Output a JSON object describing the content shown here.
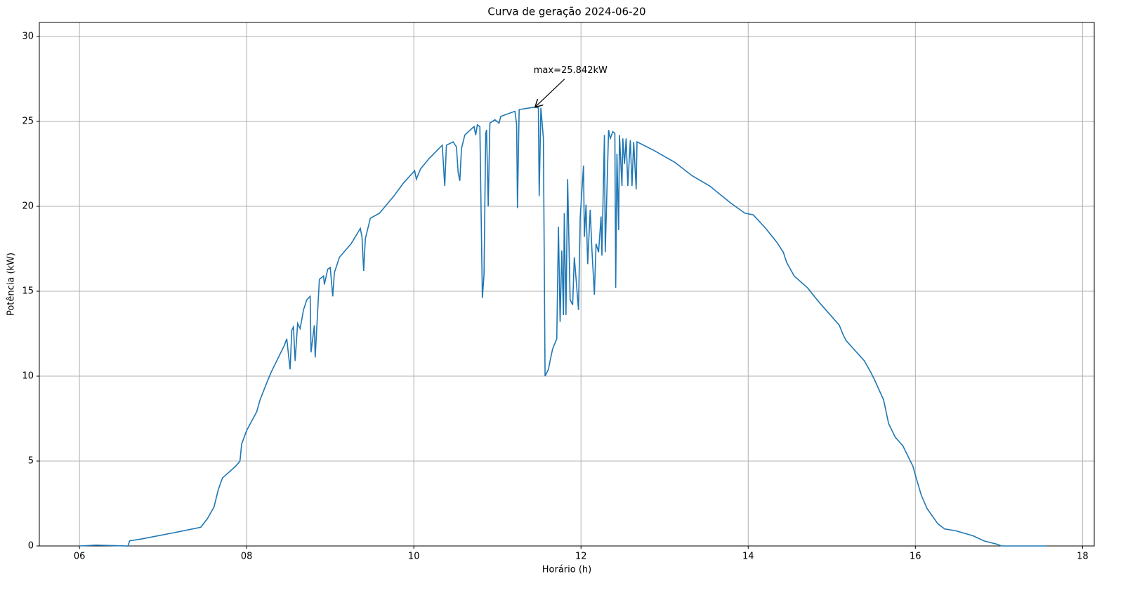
{
  "chart_data": {
    "type": "line",
    "title": "Curva de geração 2024-06-20",
    "xlabel": "Horário (h)",
    "ylabel": "Potência (kW)",
    "xlim": [
      5.52,
      18.14
    ],
    "ylim": [
      0,
      30.83
    ],
    "xticks": [
      {
        "value": 6,
        "label": "06"
      },
      {
        "value": 8,
        "label": "08"
      },
      10,
      12,
      14,
      16,
      18
    ],
    "yticks": [
      0,
      5,
      10,
      15,
      20,
      25,
      30
    ],
    "grid": true,
    "annotation": {
      "text": "max=25.842kW",
      "xy": [
        11.45,
        25.842
      ]
    },
    "series": [
      {
        "color": "#1f77b4",
        "x": [
          6.0,
          6.2,
          6.58,
          6.6,
          6.73,
          7.15,
          7.45,
          7.53,
          7.61,
          7.66,
          7.71,
          7.87,
          7.92,
          7.94,
          8.0,
          8.12,
          8.16,
          8.24,
          8.29,
          8.45,
          8.48,
          8.52,
          8.54,
          8.56,
          8.58,
          8.61,
          8.64,
          8.68,
          8.72,
          8.76,
          8.77,
          8.81,
          8.82,
          8.87,
          8.92,
          8.93,
          8.97,
          9.0,
          9.03,
          9.05,
          9.11,
          9.25,
          9.36,
          9.38,
          9.4,
          9.42,
          9.48,
          9.59,
          9.76,
          9.88,
          10.01,
          10.03,
          10.08,
          10.18,
          10.34,
          10.37,
          10.39,
          10.47,
          10.51,
          10.53,
          10.55,
          10.57,
          10.61,
          10.72,
          10.74,
          10.76,
          10.79,
          10.82,
          10.84,
          10.86,
          10.87,
          10.89,
          10.91,
          10.97,
          11.02,
          11.04,
          11.21,
          11.23,
          11.24,
          11.26,
          11.39,
          11.45,
          11.49,
          11.5,
          11.52,
          11.55,
          11.57,
          11.61,
          11.63,
          11.66,
          11.71,
          11.73,
          11.75,
          11.77,
          11.79,
          11.8,
          11.82,
          11.84,
          11.87,
          11.9,
          11.92,
          11.94,
          11.97,
          11.99,
          12.03,
          12.04,
          12.06,
          12.08,
          12.11,
          12.13,
          12.16,
          12.18,
          12.21,
          12.24,
          12.25,
          12.28,
          12.29,
          12.33,
          12.35,
          12.38,
          12.405,
          12.415,
          12.43,
          12.45,
          12.46,
          12.49,
          12.5,
          12.52,
          12.54,
          12.56,
          12.59,
          12.61,
          12.63,
          12.66,
          12.67,
          12.87,
          13.12,
          13.33,
          13.54,
          13.79,
          13.96,
          14.06,
          14.21,
          14.34,
          14.42,
          14.46,
          14.55,
          14.71,
          14.84,
          15.09,
          15.13,
          15.17,
          15.39,
          15.47,
          15.51,
          15.62,
          15.68,
          15.76,
          15.85,
          15.97,
          16.01,
          16.07,
          16.14,
          16.27,
          16.35,
          16.48,
          16.69,
          16.82,
          16.98,
          17.03,
          17.57
        ],
        "values": [
          0,
          0.05,
          0,
          0.3,
          0.4,
          0.8,
          1.1,
          1.6,
          2.3,
          3.3,
          4.0,
          4.7,
          5.0,
          6.0,
          6.8,
          7.9,
          8.6,
          9.6,
          10.2,
          11.8,
          12.2,
          10.4,
          12.7,
          12.9,
          10.9,
          13.1,
          12.8,
          13.9,
          14.5,
          14.7,
          11.4,
          13.0,
          11.1,
          15.7,
          15.9,
          15.4,
          16.3,
          16.4,
          14.7,
          16.1,
          17.0,
          17.8,
          18.7,
          18.2,
          16.2,
          18.1,
          19.3,
          19.6,
          20.6,
          21.4,
          22.1,
          21.6,
          22.2,
          22.8,
          23.6,
          21.2,
          23.6,
          23.8,
          23.5,
          22.0,
          21.5,
          23.4,
          24.2,
          24.7,
          24.2,
          24.8,
          24.7,
          14.6,
          16.0,
          24.3,
          24.5,
          20.0,
          24.9,
          25.1,
          24.9,
          25.3,
          25.6,
          24.8,
          19.9,
          25.7,
          25.8,
          25.842,
          25.8,
          20.6,
          25.8,
          24.0,
          10.0,
          10.4,
          10.9,
          11.6,
          12.2,
          18.8,
          13.2,
          17.4,
          13.6,
          19.6,
          13.6,
          21.6,
          14.5,
          14.2,
          17.0,
          15.8,
          13.9,
          19.3,
          22.4,
          18.2,
          20.1,
          16.6,
          19.8,
          17.5,
          14.8,
          17.8,
          17.3,
          19.4,
          17.1,
          24.2,
          17.3,
          24.5,
          24.0,
          24.4,
          24.3,
          15.2,
          23.1,
          18.6,
          24.2,
          21.2,
          24.0,
          22.5,
          24.0,
          21.2,
          23.9,
          21.2,
          23.8,
          21.0,
          23.8,
          23.3,
          22.6,
          21.8,
          21.2,
          20.2,
          19.6,
          19.5,
          18.7,
          17.9,
          17.3,
          16.7,
          15.9,
          15.2,
          14.4,
          13.0,
          12.5,
          12.1,
          10.9,
          10.2,
          9.8,
          8.6,
          7.2,
          6.4,
          5.9,
          4.7,
          4.0,
          3.0,
          2.2,
          1.3,
          1.0,
          0.9,
          0.6,
          0.3,
          0.1,
          0,
          0
        ]
      }
    ]
  }
}
